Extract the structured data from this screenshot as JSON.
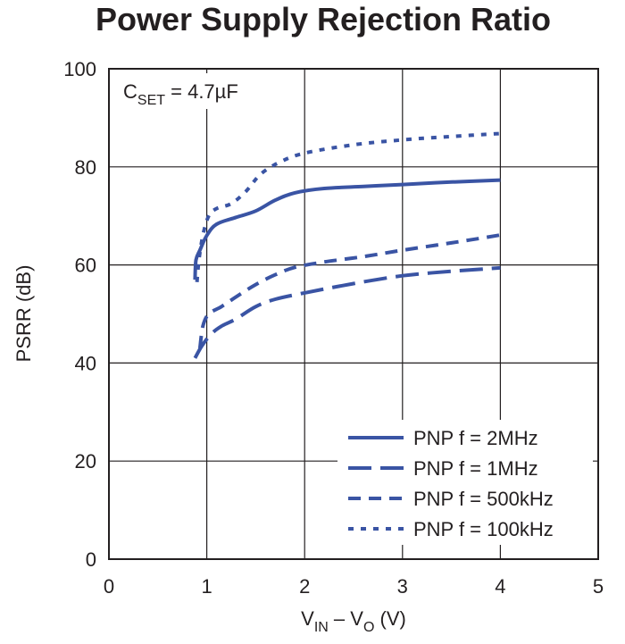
{
  "chart_data": {
    "type": "line",
    "title": "Power Supply Rejection Ratio",
    "annotation": {
      "main": "C",
      "sub": "SET",
      "rest": " = 4.7µF"
    },
    "xlabel": {
      "main1": "V",
      "sub1": "IN",
      "mid": " – V",
      "sub2": "O",
      "rest": " (V)"
    },
    "ylabel": "PSRR (dB)",
    "xlim": [
      0,
      5
    ],
    "ylim": [
      0,
      100
    ],
    "xticks": [
      0,
      1,
      2,
      3,
      4,
      5
    ],
    "yticks": [
      0,
      20,
      40,
      60,
      80,
      100
    ],
    "grid": true,
    "legend_position": "bottom-right",
    "line_color": "#3a54a4",
    "series": [
      {
        "name": "PNP f = 2MHz",
        "style": "solid",
        "points": [
          [
            0.88,
            57
          ],
          [
            0.89,
            61
          ],
          [
            0.93,
            63
          ],
          [
            1.0,
            66
          ],
          [
            1.1,
            68.3
          ],
          [
            1.3,
            69.7
          ],
          [
            1.5,
            71
          ],
          [
            1.7,
            73.2
          ],
          [
            1.9,
            74.7
          ],
          [
            2.2,
            75.6
          ],
          [
            2.6,
            76
          ],
          [
            3.0,
            76.4
          ],
          [
            3.5,
            76.9
          ],
          [
            4.0,
            77.3
          ]
        ]
      },
      {
        "name": "PNP f = 1MHz",
        "style": "longdash",
        "points": [
          [
            0.88,
            41
          ],
          [
            0.95,
            43.5
          ],
          [
            1.05,
            46
          ],
          [
            1.15,
            47.5
          ],
          [
            1.3,
            49
          ],
          [
            1.5,
            51.5
          ],
          [
            1.7,
            53
          ],
          [
            2.0,
            54.3
          ],
          [
            2.5,
            56.2
          ],
          [
            3.0,
            57.8
          ],
          [
            3.5,
            58.7
          ],
          [
            4.0,
            59.4
          ]
        ]
      },
      {
        "name": "PNP f = 500kHz",
        "style": "dash",
        "points": [
          [
            0.93,
            43
          ],
          [
            0.96,
            47.5
          ],
          [
            1.02,
            50
          ],
          [
            1.15,
            51.5
          ],
          [
            1.3,
            53.5
          ],
          [
            1.5,
            56
          ],
          [
            1.7,
            58
          ],
          [
            1.9,
            59.5
          ],
          [
            2.2,
            60.6
          ],
          [
            2.6,
            61.7
          ],
          [
            3.0,
            63
          ],
          [
            3.5,
            64.5
          ],
          [
            4.0,
            66.1
          ]
        ]
      },
      {
        "name": "PNP f = 100kHz",
        "style": "dot",
        "points": [
          [
            0.9,
            56.5
          ],
          [
            0.92,
            61
          ],
          [
            0.96,
            66
          ],
          [
            1.02,
            70
          ],
          [
            1.1,
            71.5
          ],
          [
            1.25,
            72.5
          ],
          [
            1.4,
            75
          ],
          [
            1.55,
            78.5
          ],
          [
            1.75,
            81
          ],
          [
            2.0,
            82.8
          ],
          [
            2.5,
            84.5
          ],
          [
            3.0,
            85.5
          ],
          [
            3.5,
            86.2
          ],
          [
            4.0,
            86.8
          ]
        ]
      }
    ]
  }
}
